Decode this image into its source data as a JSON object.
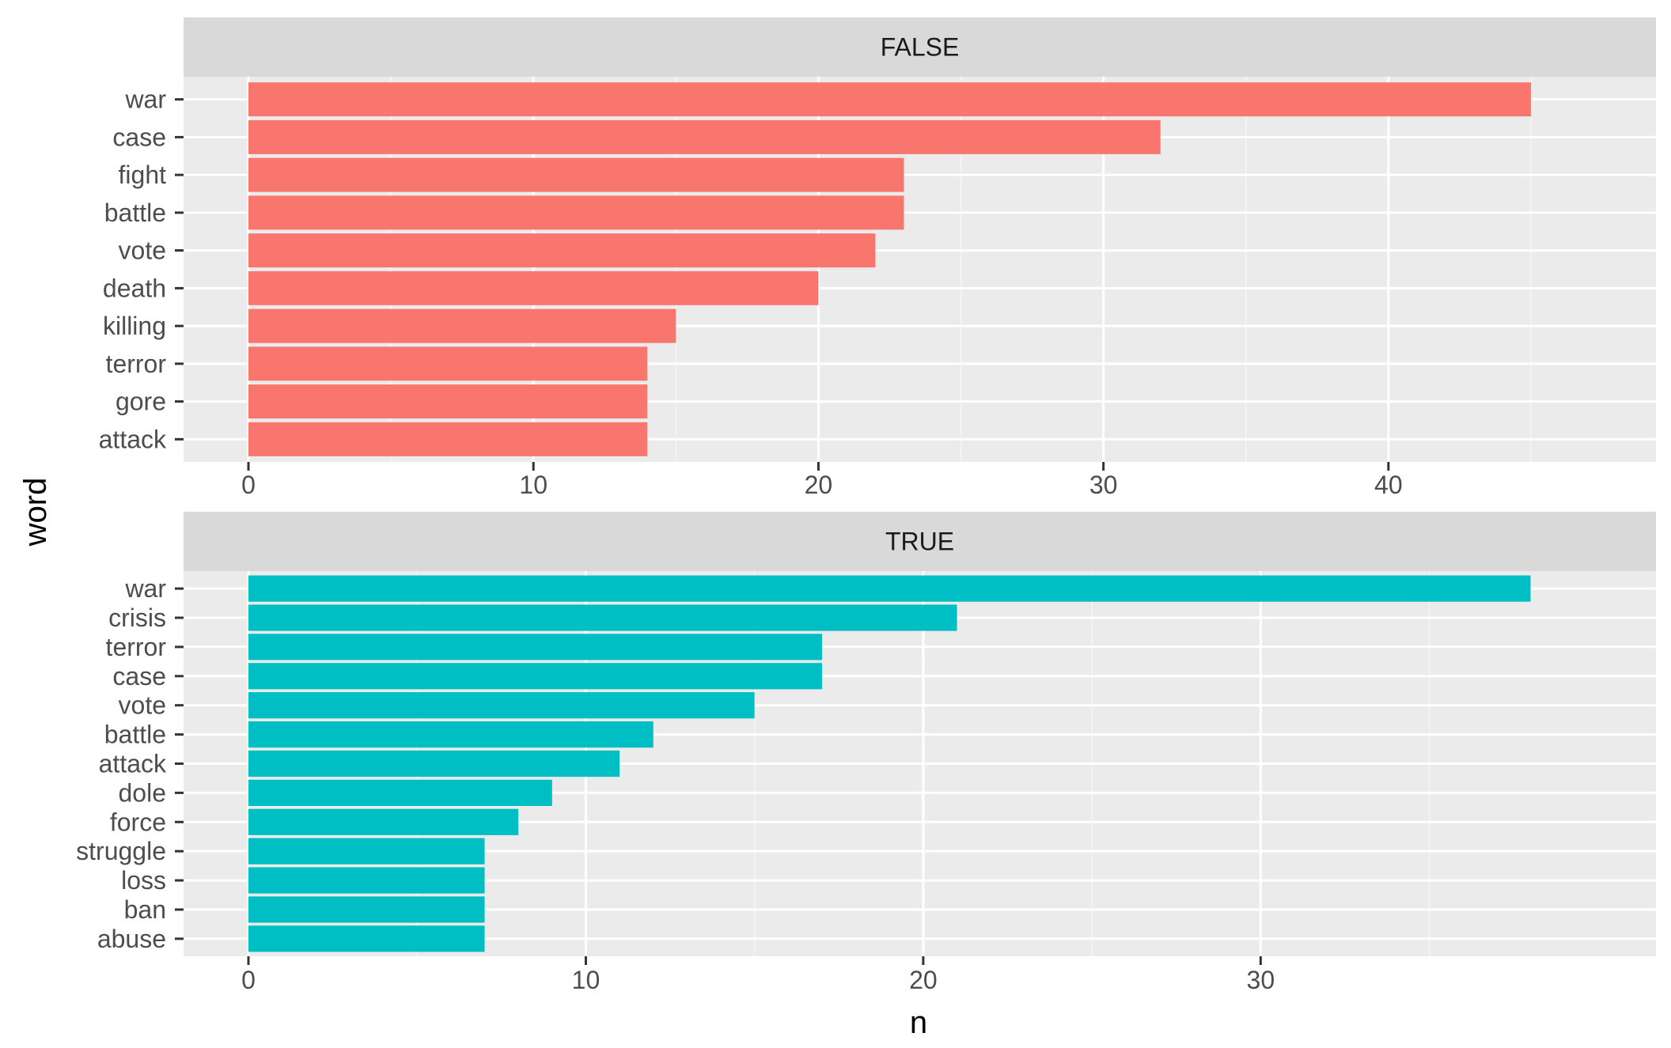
{
  "chart_data": {
    "type": "bar",
    "orientation": "horizontal",
    "xlabel": "n",
    "ylabel": "word",
    "grid": true,
    "legend": "none",
    "facets": [
      {
        "label": "FALSE",
        "color": "#F8766D",
        "categories": [
          "war",
          "case",
          "fight",
          "battle",
          "vote",
          "death",
          "killing",
          "terror",
          "gore",
          "attack"
        ],
        "values": [
          45,
          32,
          23,
          23,
          22,
          20,
          15,
          14,
          14,
          14
        ],
        "xlim": [
          0,
          47
        ],
        "xticks": [
          0,
          10,
          20,
          30,
          40
        ]
      },
      {
        "label": "TRUE",
        "color": "#00BFC4",
        "categories": [
          "war",
          "crisis",
          "terror",
          "case",
          "vote",
          "battle",
          "attack",
          "dole",
          "force",
          "struggle",
          "loss",
          "ban",
          "abuse"
        ],
        "values": [
          38,
          21,
          17,
          17,
          15,
          12,
          11,
          9,
          8,
          7,
          7,
          7,
          7
        ],
        "xlim": [
          0,
          39.7
        ],
        "xticks": [
          0,
          10,
          20,
          30
        ]
      }
    ]
  }
}
